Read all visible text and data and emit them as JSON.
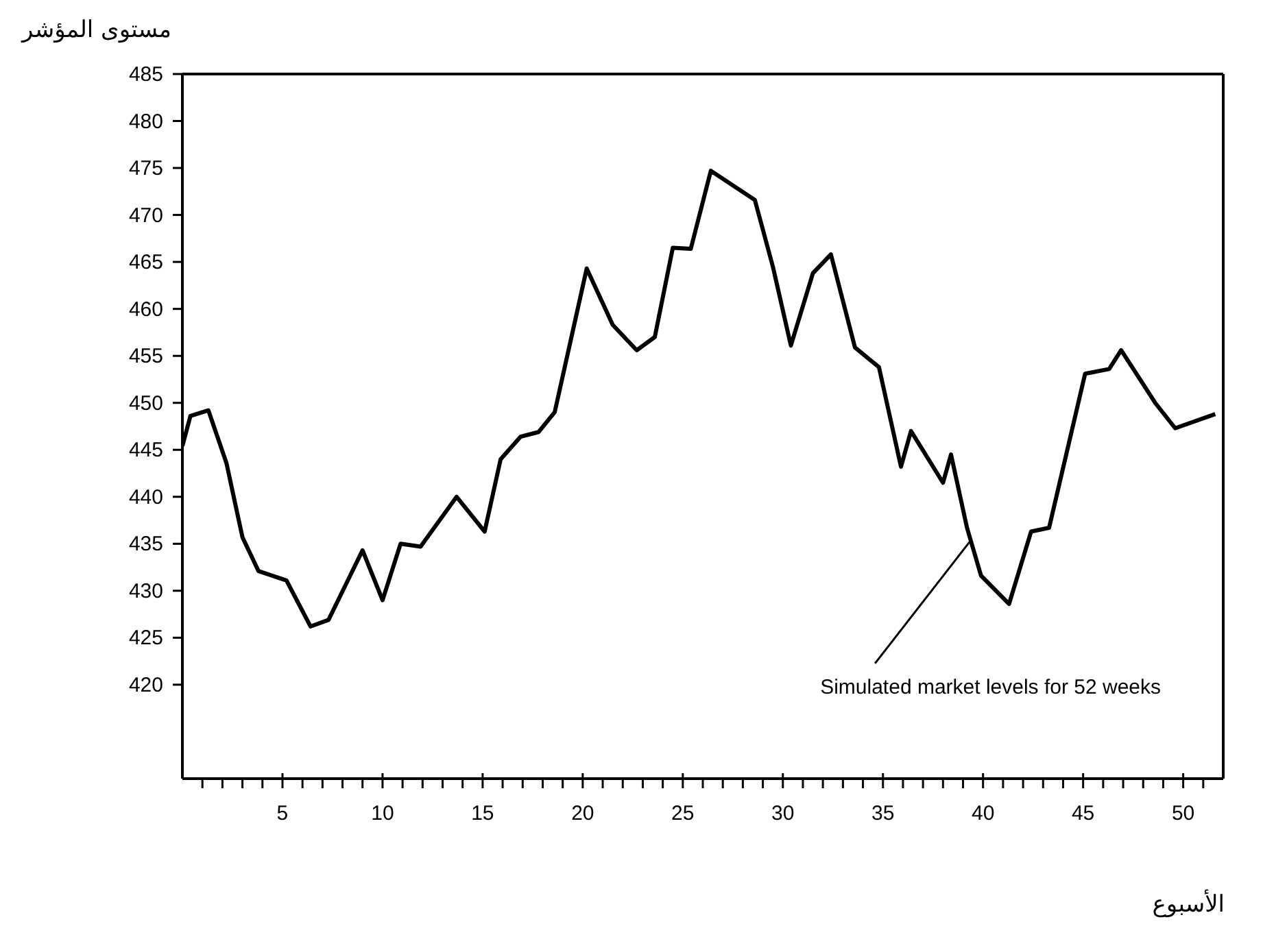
{
  "chart_data": {
    "type": "line",
    "ylabel": "مستوى المؤشر",
    "xlabel": "الأسبوع",
    "color": "#000000",
    "x": [
      0,
      0.4,
      1.3,
      2.2,
      3,
      3.8,
      5.2,
      6.4,
      7.3,
      9,
      10,
      10.9,
      11.9,
      13.7,
      15.1,
      15.9,
      16.9,
      17.8,
      18.6,
      20.2,
      21.5,
      22.7,
      23.6,
      24.5,
      25.4,
      26.4,
      28.6,
      29.5,
      30.4,
      31.5,
      32.4,
      33.6,
      34.8,
      35.9,
      36.4,
      38,
      38.4,
      39.2,
      39.9,
      41.3,
      42.4,
      43.3,
      45.1,
      46.3,
      46.9,
      48.6,
      49.6,
      51.6
    ],
    "values": [
      445.4,
      448.6,
      449.2,
      443.6,
      435.7,
      432.1,
      431.1,
      426.2,
      426.9,
      434.3,
      429,
      435,
      434.7,
      440,
      436.3,
      444,
      446.4,
      446.9,
      449,
      464.3,
      458.3,
      455.6,
      457,
      466.5,
      466.4,
      474.7,
      471.6,
      464.5,
      456.1,
      463.8,
      465.8,
      455.9,
      453.8,
      443.2,
      447,
      441.5,
      444.5,
      436.7,
      431.6,
      428.6,
      436.3,
      436.7,
      453.1,
      453.6,
      455.6,
      450,
      447.3,
      448.8
    ],
    "xlim": [
      0,
      52
    ],
    "ylim": [
      410,
      485
    ],
    "yticks": [
      420,
      425,
      430,
      435,
      440,
      445,
      450,
      455,
      460,
      465,
      470,
      475,
      480,
      485
    ],
    "xticks": [
      {
        "value": 1,
        "label": null
      },
      {
        "value": 2,
        "label": null
      },
      {
        "value": 3,
        "label": null
      },
      {
        "value": 4,
        "label": null
      },
      5,
      {
        "value": 6,
        "label": null
      },
      {
        "value": 7,
        "label": null
      },
      {
        "value": 8,
        "label": null
      },
      {
        "value": 9,
        "label": null
      },
      10,
      {
        "value": 11,
        "label": null
      },
      {
        "value": 12,
        "label": null
      },
      {
        "value": 13,
        "label": null
      },
      {
        "value": 14,
        "label": null
      },
      15,
      {
        "value": 16,
        "label": null
      },
      {
        "value": 17,
        "label": null
      },
      {
        "value": 18,
        "label": null
      },
      {
        "value": 19,
        "label": null
      },
      20,
      {
        "value": 21,
        "label": null
      },
      {
        "value": 22,
        "label": null
      },
      {
        "value": 23,
        "label": null
      },
      {
        "value": 24,
        "label": null
      },
      25,
      {
        "value": 26,
        "label": null
      },
      {
        "value": 27,
        "label": null
      },
      {
        "value": 28,
        "label": null
      },
      {
        "value": 29,
        "label": null
      },
      30,
      {
        "value": 31,
        "label": null
      },
      {
        "value": 32,
        "label": null
      },
      {
        "value": 33,
        "label": null
      },
      {
        "value": 34,
        "label": null
      },
      35,
      {
        "value": 36,
        "label": null
      },
      {
        "value": 37,
        "label": null
      },
      {
        "value": 38,
        "label": null
      },
      {
        "value": 39,
        "label": null
      },
      40,
      {
        "value": 41,
        "label": null
      },
      {
        "value": 42,
        "label": null
      },
      {
        "value": 43,
        "label": null
      },
      {
        "value": 44,
        "label": null
      },
      45,
      {
        "value": 46,
        "label": null
      },
      {
        "value": 47,
        "label": null
      },
      {
        "value": 48,
        "label": null
      },
      {
        "value": 49,
        "label": null
      },
      50,
      {
        "value": 51,
        "label": null
      }
    ],
    "annotations": [
      {
        "text": "Simulated market levels for 52 weeks",
        "x": 39.4,
        "y": 435.4
      }
    ],
    "grid": false,
    "marker": "none",
    "line_style": "solid"
  }
}
